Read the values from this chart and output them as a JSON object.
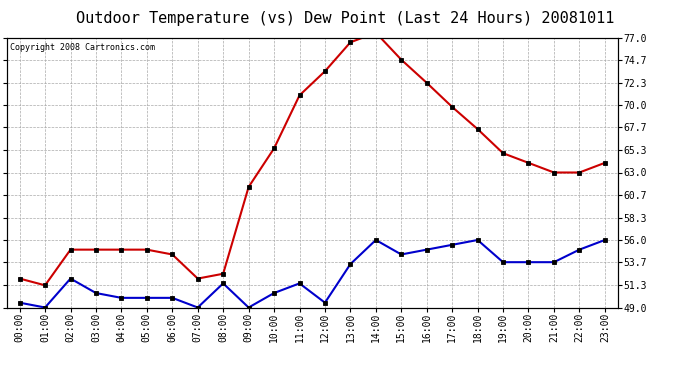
{
  "title": "Outdoor Temperature (vs) Dew Point (Last 24 Hours) 20081011",
  "copyright": "Copyright 2008 Cartronics.com",
  "hours": [
    "00:00",
    "01:00",
    "02:00",
    "03:00",
    "04:00",
    "05:00",
    "06:00",
    "07:00",
    "08:00",
    "09:00",
    "10:00",
    "11:00",
    "12:00",
    "13:00",
    "14:00",
    "15:00",
    "16:00",
    "17:00",
    "18:00",
    "19:00",
    "20:00",
    "21:00",
    "22:00",
    "23:00"
  ],
  "temp": [
    52.0,
    51.3,
    55.0,
    55.0,
    55.0,
    55.0,
    54.5,
    52.0,
    52.5,
    61.5,
    65.5,
    71.0,
    73.5,
    76.5,
    77.5,
    74.7,
    72.3,
    69.8,
    67.5,
    65.0,
    64.0,
    63.0,
    63.0,
    64.0
  ],
  "dew": [
    49.5,
    49.0,
    52.0,
    50.5,
    50.0,
    50.0,
    50.0,
    49.0,
    51.5,
    49.0,
    50.5,
    51.5,
    49.5,
    53.5,
    56.0,
    54.5,
    55.0,
    55.5,
    56.0,
    53.7,
    53.7,
    53.7,
    55.0,
    56.0
  ],
  "temp_color": "#cc0000",
  "dew_color": "#0000cc",
  "bg_color": "#ffffff",
  "grid_color": "#aaaaaa",
  "yticks": [
    49.0,
    51.3,
    53.7,
    56.0,
    58.3,
    60.7,
    63.0,
    65.3,
    67.7,
    70.0,
    72.3,
    74.7,
    77.0
  ],
  "ylim": [
    49.0,
    77.0
  ],
  "marker": "s",
  "marker_size": 3,
  "linewidth": 1.5,
  "title_fontsize": 11,
  "tick_fontsize": 7,
  "copyright_fontsize": 6
}
